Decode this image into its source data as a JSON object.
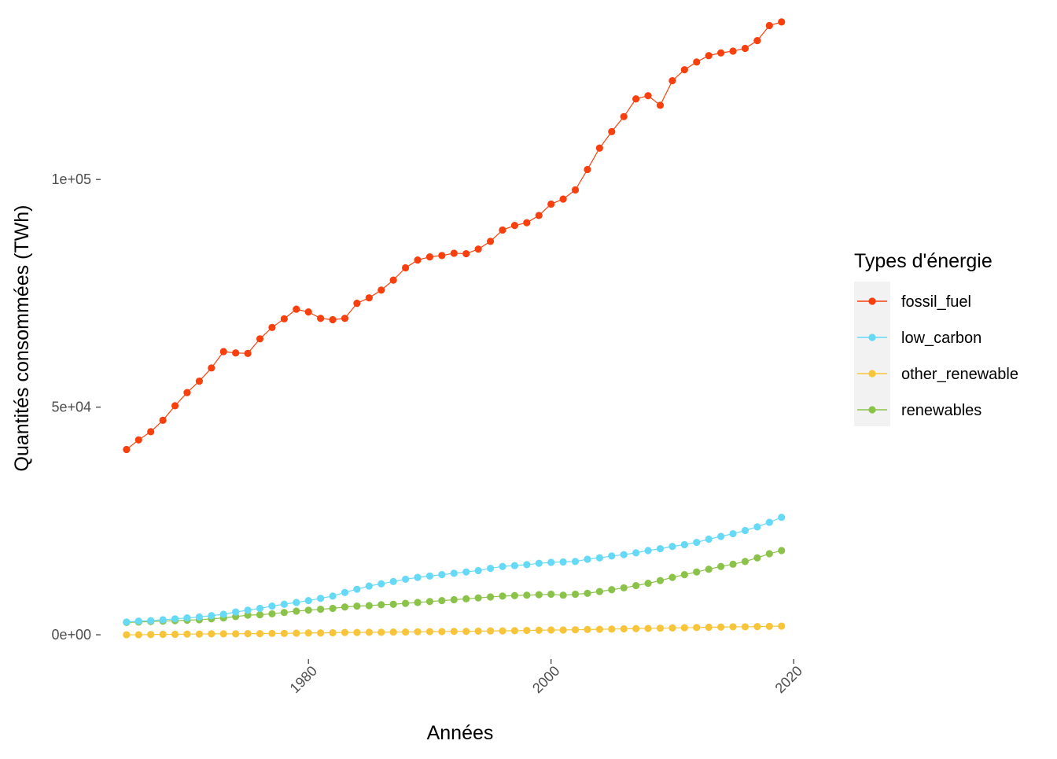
{
  "chart_data": {
    "type": "line",
    "title": "",
    "xlabel": "Années",
    "ylabel": "Quantités consommées (TWh)",
    "xlim": [
      1963,
      2022
    ],
    "ylim": [
      -5000,
      137000
    ],
    "x_ticks": [
      1980,
      2000,
      2020
    ],
    "x_tick_labels": [
      "1980",
      "2000",
      "2020"
    ],
    "y_ticks": [
      0,
      50000,
      100000
    ],
    "y_tick_labels": [
      "0e+00",
      "5e+04",
      "1e+05"
    ],
    "grid": false,
    "legend": {
      "title": "Types d'énergie",
      "position": "right"
    },
    "x": [
      1965,
      1966,
      1967,
      1968,
      1969,
      1970,
      1971,
      1972,
      1973,
      1974,
      1975,
      1976,
      1977,
      1978,
      1979,
      1980,
      1981,
      1982,
      1983,
      1984,
      1985,
      1986,
      1987,
      1988,
      1989,
      1990,
      1991,
      1992,
      1993,
      1994,
      1995,
      1996,
      1997,
      1998,
      1999,
      2000,
      2001,
      2002,
      2003,
      2004,
      2005,
      2006,
      2007,
      2008,
      2009,
      2010,
      2011,
      2012,
      2013,
      2014,
      2015,
      2016,
      2017,
      2018,
      2019
    ],
    "series": [
      {
        "name": "fossil_fuel",
        "color": "#f8400e",
        "values": [
          40700,
          42800,
          44600,
          47100,
          50300,
          53200,
          55700,
          58600,
          62200,
          61900,
          61800,
          65000,
          67500,
          69400,
          71500,
          70900,
          69500,
          69200,
          69500,
          72800,
          74000,
          75700,
          77900,
          80600,
          82300,
          83000,
          83300,
          83800,
          83700,
          84700,
          86400,
          88900,
          89900,
          90500,
          92100,
          94600,
          95700,
          97700,
          102200,
          106900,
          110500,
          113800,
          117700,
          118400,
          116300,
          121700,
          124100,
          125800,
          127200,
          127800,
          128200,
          128800,
          130500,
          133800,
          134600
        ]
      },
      {
        "name": "low_carbon",
        "color": "#66d9f7",
        "values": [
          2800,
          3000,
          3100,
          3300,
          3500,
          3700,
          3900,
          4200,
          4500,
          5000,
          5400,
          5800,
          6300,
          6700,
          7100,
          7500,
          8000,
          8500,
          9300,
          10000,
          10700,
          11200,
          11700,
          12200,
          12600,
          12900,
          13200,
          13500,
          13800,
          14100,
          14600,
          15000,
          15200,
          15400,
          15700,
          15900,
          16000,
          16100,
          16600,
          16900,
          17300,
          17600,
          18000,
          18500,
          18900,
          19400,
          19800,
          20300,
          21000,
          21600,
          22200,
          22900,
          23700,
          24700,
          25800
        ]
      },
      {
        "name": "other_renewable",
        "color": "#f8c43a",
        "values": [
          0,
          0,
          50,
          100,
          100,
          150,
          150,
          200,
          200,
          200,
          250,
          250,
          300,
          300,
          350,
          400,
          400,
          450,
          500,
          500,
          550,
          550,
          600,
          600,
          650,
          700,
          700,
          750,
          750,
          800,
          850,
          850,
          900,
          950,
          1000,
          1050,
          1050,
          1100,
          1150,
          1200,
          1250,
          1300,
          1350,
          1400,
          1450,
          1500,
          1550,
          1600,
          1650,
          1700,
          1750,
          1750,
          1800,
          1850,
          1900
        ]
      },
      {
        "name": "renewables",
        "color": "#8bc34a",
        "values": [
          2700,
          2800,
          2900,
          3000,
          3100,
          3200,
          3300,
          3500,
          3700,
          4000,
          4300,
          4400,
          4600,
          4900,
          5200,
          5400,
          5600,
          5800,
          6100,
          6300,
          6400,
          6600,
          6700,
          6900,
          7100,
          7300,
          7500,
          7700,
          7900,
          8100,
          8300,
          8500,
          8600,
          8700,
          8800,
          8900,
          8700,
          8900,
          9100,
          9500,
          9900,
          10300,
          10800,
          11300,
          11900,
          12600,
          13200,
          13800,
          14400,
          15000,
          15500,
          16100,
          16900,
          17800,
          18500
        ]
      }
    ]
  }
}
